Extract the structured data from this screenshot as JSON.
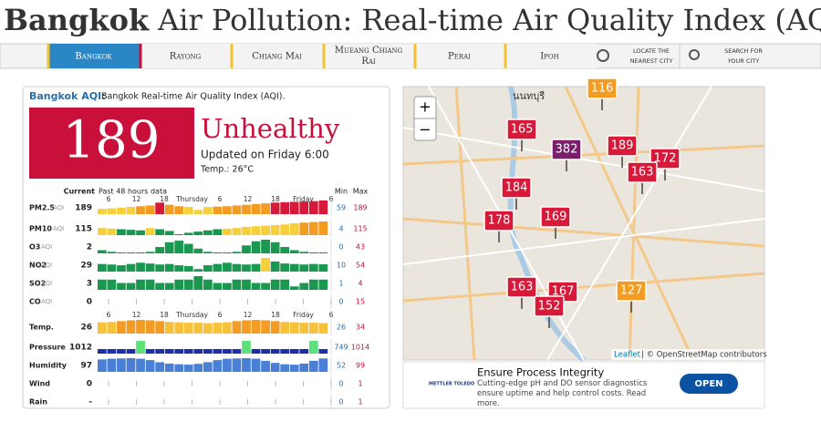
{
  "header": {
    "city": "Bangkok",
    "title": "Air Pollution: Real-time Air Quality Index (AQI)"
  },
  "nav": {
    "tabs": [
      "Bangkok",
      "Rayong",
      "Chiang Mai",
      "Mueang Chiang Rai",
      "Perai",
      "Ipoh"
    ],
    "locate": "LOCATE THE NEAREST CITY",
    "search": "SEARCH FOR YOUR CITY"
  },
  "panel": {
    "heading": "Bangkok AQI:",
    "subheading": "Bangkok Real-time Air Quality Index (AQI).",
    "aqi": 189,
    "status": "Unhealthy",
    "updated": "Updated on Friday 6:00",
    "temp": "Temp.: 26°C",
    "table": {
      "current": "Current",
      "past": "Past 48 hours data",
      "min": "Min",
      "max": "Max",
      "times": [
        "6",
        "12",
        "18",
        "Thursday",
        "6",
        "12",
        "18",
        "Friday",
        "6"
      ],
      "rows": [
        {
          "name": "PM2.5",
          "unit": "AQI",
          "current": 189,
          "min": 59,
          "max": 189,
          "kind": "aqi",
          "history": [
            75,
            80,
            90,
            100,
            110,
            120,
            160,
            130,
            110,
            100,
            59,
            100,
            105,
            110,
            120,
            130,
            140,
            150,
            160,
            165,
            170,
            175,
            180,
            189
          ]
        },
        {
          "name": "PM10",
          "unit": "AQI",
          "current": 115,
          "min": 4,
          "max": 115,
          "kind": "aqi",
          "history": [
            60,
            55,
            50,
            45,
            40,
            60,
            50,
            35,
            4,
            20,
            30,
            40,
            50,
            55,
            60,
            70,
            75,
            80,
            85,
            90,
            100,
            105,
            110,
            115
          ]
        },
        {
          "name": "O3",
          "unit": "AQI",
          "current": 2,
          "min": 0,
          "max": 43,
          "kind": "aqi",
          "history": [
            10,
            5,
            3,
            2,
            0,
            5,
            20,
            35,
            40,
            30,
            15,
            5,
            3,
            2,
            5,
            25,
            38,
            43,
            35,
            20,
            10,
            5,
            3,
            2
          ]
        },
        {
          "name": "NO2",
          "unit": "AQI",
          "current": 29,
          "min": 10,
          "max": 54,
          "kind": "aqi",
          "history": [
            30,
            28,
            25,
            30,
            35,
            32,
            28,
            30,
            25,
            22,
            10,
            25,
            30,
            35,
            30,
            28,
            30,
            54,
            40,
            32,
            30,
            28,
            30,
            29
          ]
        },
        {
          "name": "SO2",
          "unit": "AQI",
          "current": 3,
          "min": 1,
          "max": 4,
          "kind": "aqi",
          "history": [
            3,
            3,
            2,
            2,
            3,
            3,
            2,
            2,
            3,
            3,
            4,
            3,
            2,
            2,
            3,
            3,
            2,
            2,
            3,
            3,
            1,
            2,
            3,
            3
          ]
        },
        {
          "name": "CO",
          "unit": "AQI",
          "current": 0,
          "min": 0,
          "max": 15,
          "kind": "aqi",
          "history": []
        },
        {
          "name": "Temp.",
          "current": 26,
          "min": 26,
          "max": 34,
          "kind": "temp",
          "axis": true,
          "history": [
            28,
            29,
            31,
            33,
            34,
            33,
            31,
            29,
            28,
            27,
            27,
            26,
            27,
            28,
            31,
            33,
            34,
            33,
            31,
            29,
            28,
            27,
            27,
            26
          ]
        },
        {
          "name": "Pressure",
          "current": 1012,
          "min": 749,
          "max": 1014,
          "kind": "pressure",
          "history": [
            1012,
            1012,
            1012,
            1012,
            749,
            1012,
            1013,
            1013,
            1014,
            1013,
            1012,
            1012,
            1012,
            1012,
            1012,
            749,
            1012,
            1013,
            1013,
            1014,
            1013,
            1012,
            749,
            1012
          ]
        },
        {
          "name": "Humidity",
          "current": 97,
          "min": 52,
          "max": 99,
          "kind": "humidity",
          "history": [
            90,
            95,
            97,
            99,
            95,
            85,
            70,
            60,
            55,
            52,
            58,
            70,
            85,
            95,
            97,
            99,
            95,
            80,
            65,
            55,
            52,
            60,
            80,
            97
          ]
        },
        {
          "name": "Wind",
          "current": 0,
          "min": 0,
          "max": 1,
          "kind": "none",
          "history": []
        },
        {
          "name": "Rain",
          "current": "-",
          "min": 0,
          "max": 1,
          "kind": "none",
          "history": []
        }
      ]
    }
  },
  "map": {
    "place": "นนทบุรี",
    "leaflet": "Leaflet",
    "credit": "| © OpenStreetMap contributors",
    "markers": [
      116,
      165,
      382,
      189,
      172,
      163,
      184,
      178,
      169,
      163,
      167,
      152,
      127
    ]
  },
  "ad": {
    "brand": "METTLER TOLEDO",
    "title": "Ensure Process Integrity",
    "text": "Cutting-edge pH and DO sensor diagnostics ensure uptime and help control costs. Read more.",
    "button": "OPEN"
  }
}
